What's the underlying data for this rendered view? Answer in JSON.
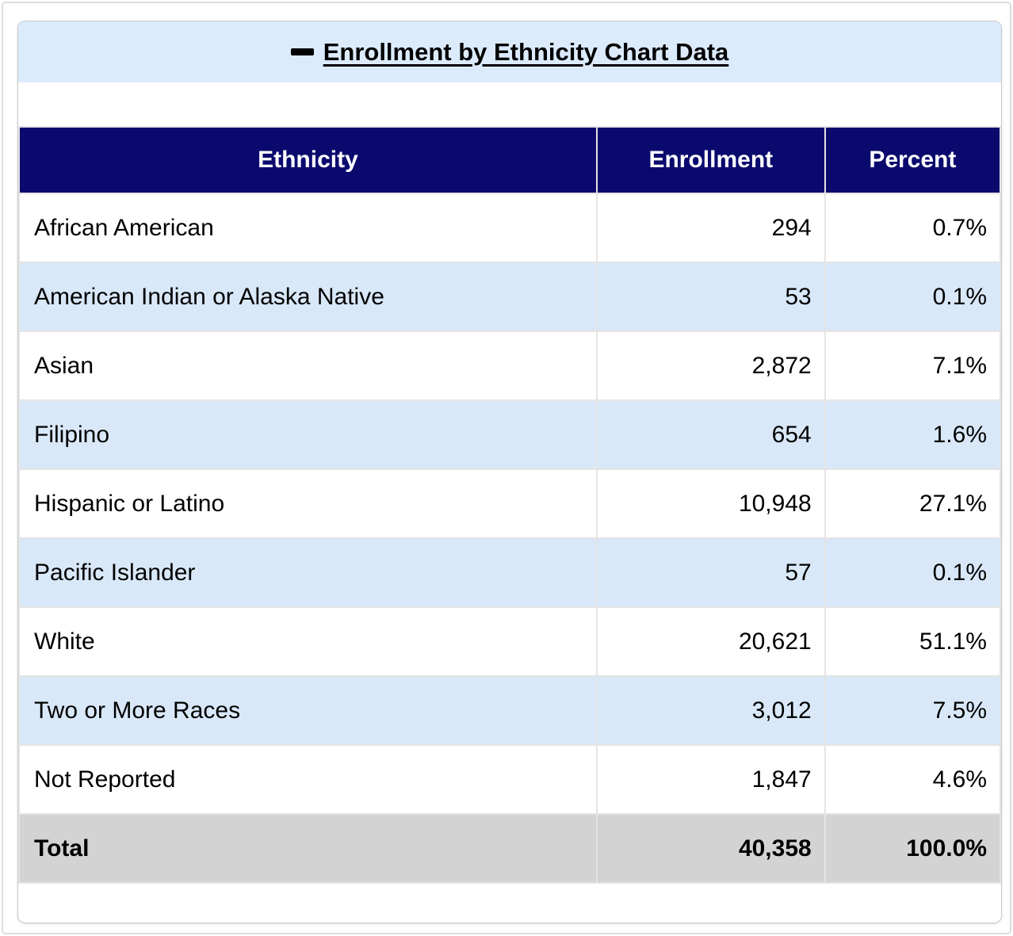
{
  "header": {
    "collapse_icon": "minus-icon",
    "title": "Enrollment by Ethnicity Chart Data"
  },
  "table": {
    "columns": [
      "Ethnicity",
      "Enrollment",
      "Percent"
    ],
    "rows": [
      {
        "ethnicity": "African American",
        "enrollment": "294",
        "percent": "0.7%"
      },
      {
        "ethnicity": "American Indian or Alaska Native",
        "enrollment": "53",
        "percent": "0.1%"
      },
      {
        "ethnicity": "Asian",
        "enrollment": "2,872",
        "percent": "7.1%"
      },
      {
        "ethnicity": "Filipino",
        "enrollment": "654",
        "percent": "1.6%"
      },
      {
        "ethnicity": "Hispanic or Latino",
        "enrollment": "10,948",
        "percent": "27.1%"
      },
      {
        "ethnicity": "Pacific Islander",
        "enrollment": "57",
        "percent": "0.1%"
      },
      {
        "ethnicity": "White",
        "enrollment": "20,621",
        "percent": "51.1%"
      },
      {
        "ethnicity": "Two or More Races",
        "enrollment": "3,012",
        "percent": "7.5%"
      },
      {
        "ethnicity": "Not Reported",
        "enrollment": "1,847",
        "percent": "4.6%"
      }
    ],
    "total": {
      "label": "Total",
      "enrollment": "40,358",
      "percent": "100.0%"
    }
  },
  "colors": {
    "header_navy": "#0a0a6e",
    "band_blue": "#dcebfc",
    "row_alt_blue": "#d9e8f8",
    "total_gray": "#d3d3d3",
    "grid_gray": "#e4e4e4"
  }
}
